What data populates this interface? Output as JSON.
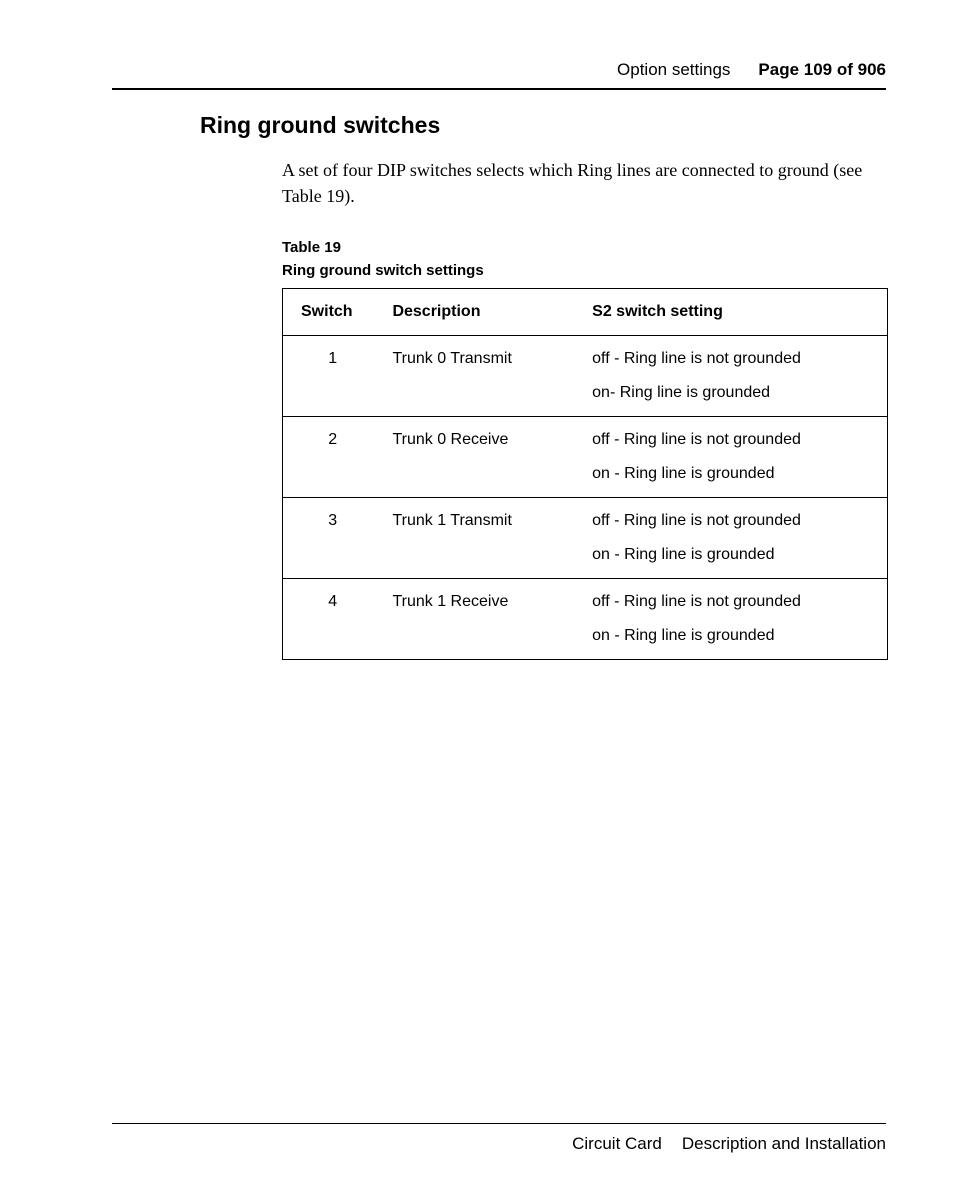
{
  "header": {
    "section": "Option settings",
    "page_label": "Page 109 of 906"
  },
  "heading": "Ring ground switches",
  "paragraph": "A set of four DIP switches selects which Ring lines are connected to ground (see Table 19).",
  "table": {
    "caption_num": "Table 19",
    "caption_title": "Ring ground switch settings",
    "columns": [
      "Switch",
      "Description",
      "S2 switch setting"
    ],
    "rows": [
      {
        "switch": "1",
        "description": "Trunk 0 Transmit",
        "settings": [
          "off - Ring line is not grounded",
          "on- Ring line is grounded"
        ]
      },
      {
        "switch": "2",
        "description": "Trunk 0 Receive",
        "settings": [
          "off - Ring line is not grounded",
          "on - Ring line is grounded"
        ]
      },
      {
        "switch": "3",
        "description": "Trunk 1 Transmit",
        "settings": [
          "off - Ring line is not grounded",
          "on - Ring line is grounded"
        ]
      },
      {
        "switch": "4",
        "description": "Trunk 1 Receive",
        "settings": [
          "off - Ring line is not grounded",
          "on - Ring line is grounded"
        ]
      }
    ]
  },
  "footer": {
    "left": "Circuit Card",
    "right": "Description and Installation"
  }
}
